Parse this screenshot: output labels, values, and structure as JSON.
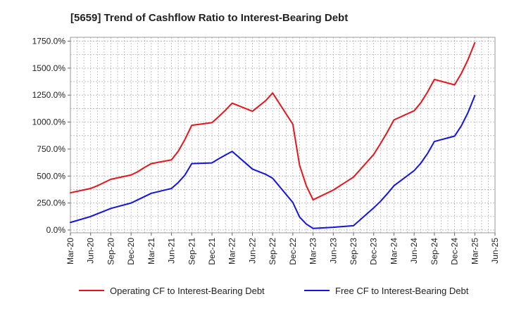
{
  "chart_data": {
    "type": "line",
    "title": "[5659]  Trend of Cashflow Ratio to Interest-Bearing Debt",
    "xlabel": "",
    "ylabel": "",
    "ylim": [
      0,
      1800
    ],
    "yticks": [
      0,
      250,
      500,
      750,
      1000,
      1250,
      1500,
      1750
    ],
    "ytick_labels": [
      "0.0%",
      "250.0%",
      "500.0%",
      "750.0%",
      "1000.0%",
      "1250.0%",
      "1500.0%",
      "1750.0%"
    ],
    "xlim": [
      "Mar-20",
      "Jun-25"
    ],
    "x_tick_labels": [
      "Mar-20",
      "Jun-20",
      "Sep-20",
      "Dec-20",
      "Mar-21",
      "Jun-21",
      "Sep-21",
      "Dec-21",
      "Mar-22",
      "Jun-22",
      "Sep-22",
      "Dec-22",
      "Mar-23",
      "Jun-23",
      "Sep-23",
      "Dec-23",
      "Mar-24",
      "Jun-24",
      "Sep-24",
      "Dec-24",
      "Mar-25",
      "Jun-25"
    ],
    "grid": true,
    "legend_position": "bottom",
    "series": [
      {
        "name": "Operating CF to Interest-Bearing Debt",
        "color": "#e8141b",
        "points": [
          [
            "Mar-20",
            345
          ],
          [
            "Jun-20",
            385
          ],
          [
            "Jul-20",
            410
          ],
          [
            "Aug-20",
            440
          ],
          [
            "Sep-20",
            470
          ],
          [
            "Dec-20",
            510
          ],
          [
            "Jan-21",
            540
          ],
          [
            "Feb-21",
            580
          ],
          [
            "Mar-21",
            615
          ],
          [
            "Jun-21",
            650
          ],
          [
            "Jul-21",
            730
          ],
          [
            "Aug-21",
            840
          ],
          [
            "Sep-21",
            970
          ],
          [
            "Dec-21",
            995
          ],
          [
            "Jan-22",
            1050
          ],
          [
            "Feb-22",
            1110
          ],
          [
            "Mar-22",
            1175
          ],
          [
            "Jun-22",
            1100
          ],
          [
            "Jul-22",
            1150
          ],
          [
            "Aug-22",
            1200
          ],
          [
            "Sep-22",
            1270
          ],
          [
            "Dec-22",
            980
          ],
          [
            "Jan-23",
            600
          ],
          [
            "Feb-23",
            410
          ],
          [
            "Mar-23",
            280
          ],
          [
            "Jun-23",
            370
          ],
          [
            "Jul-23",
            410
          ],
          [
            "Aug-23",
            450
          ],
          [
            "Sep-23",
            490
          ],
          [
            "Dec-23",
            700
          ],
          [
            "Jan-24",
            800
          ],
          [
            "Feb-24",
            905
          ],
          [
            "Mar-24",
            1020
          ],
          [
            "Jun-24",
            1105
          ],
          [
            "Jul-24",
            1180
          ],
          [
            "Aug-24",
            1280
          ],
          [
            "Sep-24",
            1395
          ],
          [
            "Dec-24",
            1345
          ],
          [
            "Jan-25",
            1450
          ],
          [
            "Feb-25",
            1580
          ],
          [
            "Mar-25",
            1735
          ]
        ]
      },
      {
        "name": "Free CF to Interest-Bearing Debt",
        "color": "#1414e0",
        "points": [
          [
            "Mar-20",
            70
          ],
          [
            "Jun-20",
            125
          ],
          [
            "Jul-20",
            150
          ],
          [
            "Aug-20",
            175
          ],
          [
            "Sep-20",
            200
          ],
          [
            "Dec-20",
            250
          ],
          [
            "Jan-21",
            280
          ],
          [
            "Feb-21",
            310
          ],
          [
            "Mar-21",
            340
          ],
          [
            "Jun-21",
            385
          ],
          [
            "Jul-21",
            440
          ],
          [
            "Aug-21",
            510
          ],
          [
            "Sep-21",
            615
          ],
          [
            "Dec-21",
            622
          ],
          [
            "Jan-22",
            660
          ],
          [
            "Feb-22",
            695
          ],
          [
            "Mar-22",
            728
          ],
          [
            "Jun-22",
            565
          ],
          [
            "Jul-22",
            540
          ],
          [
            "Aug-22",
            515
          ],
          [
            "Sep-22",
            480
          ],
          [
            "Dec-22",
            255
          ],
          [
            "Jan-23",
            120
          ],
          [
            "Feb-23",
            55
          ],
          [
            "Mar-23",
            15
          ],
          [
            "Jun-23",
            25
          ],
          [
            "Sep-23",
            40
          ],
          [
            "Dec-23",
            205
          ],
          [
            "Jan-24",
            265
          ],
          [
            "Feb-24",
            335
          ],
          [
            "Mar-24",
            410
          ],
          [
            "Jun-24",
            550
          ],
          [
            "Jul-24",
            620
          ],
          [
            "Aug-24",
            710
          ],
          [
            "Sep-24",
            820
          ],
          [
            "Dec-24",
            870
          ],
          [
            "Jan-25",
            965
          ],
          [
            "Feb-25",
            1090
          ],
          [
            "Mar-25",
            1245
          ]
        ]
      }
    ]
  }
}
